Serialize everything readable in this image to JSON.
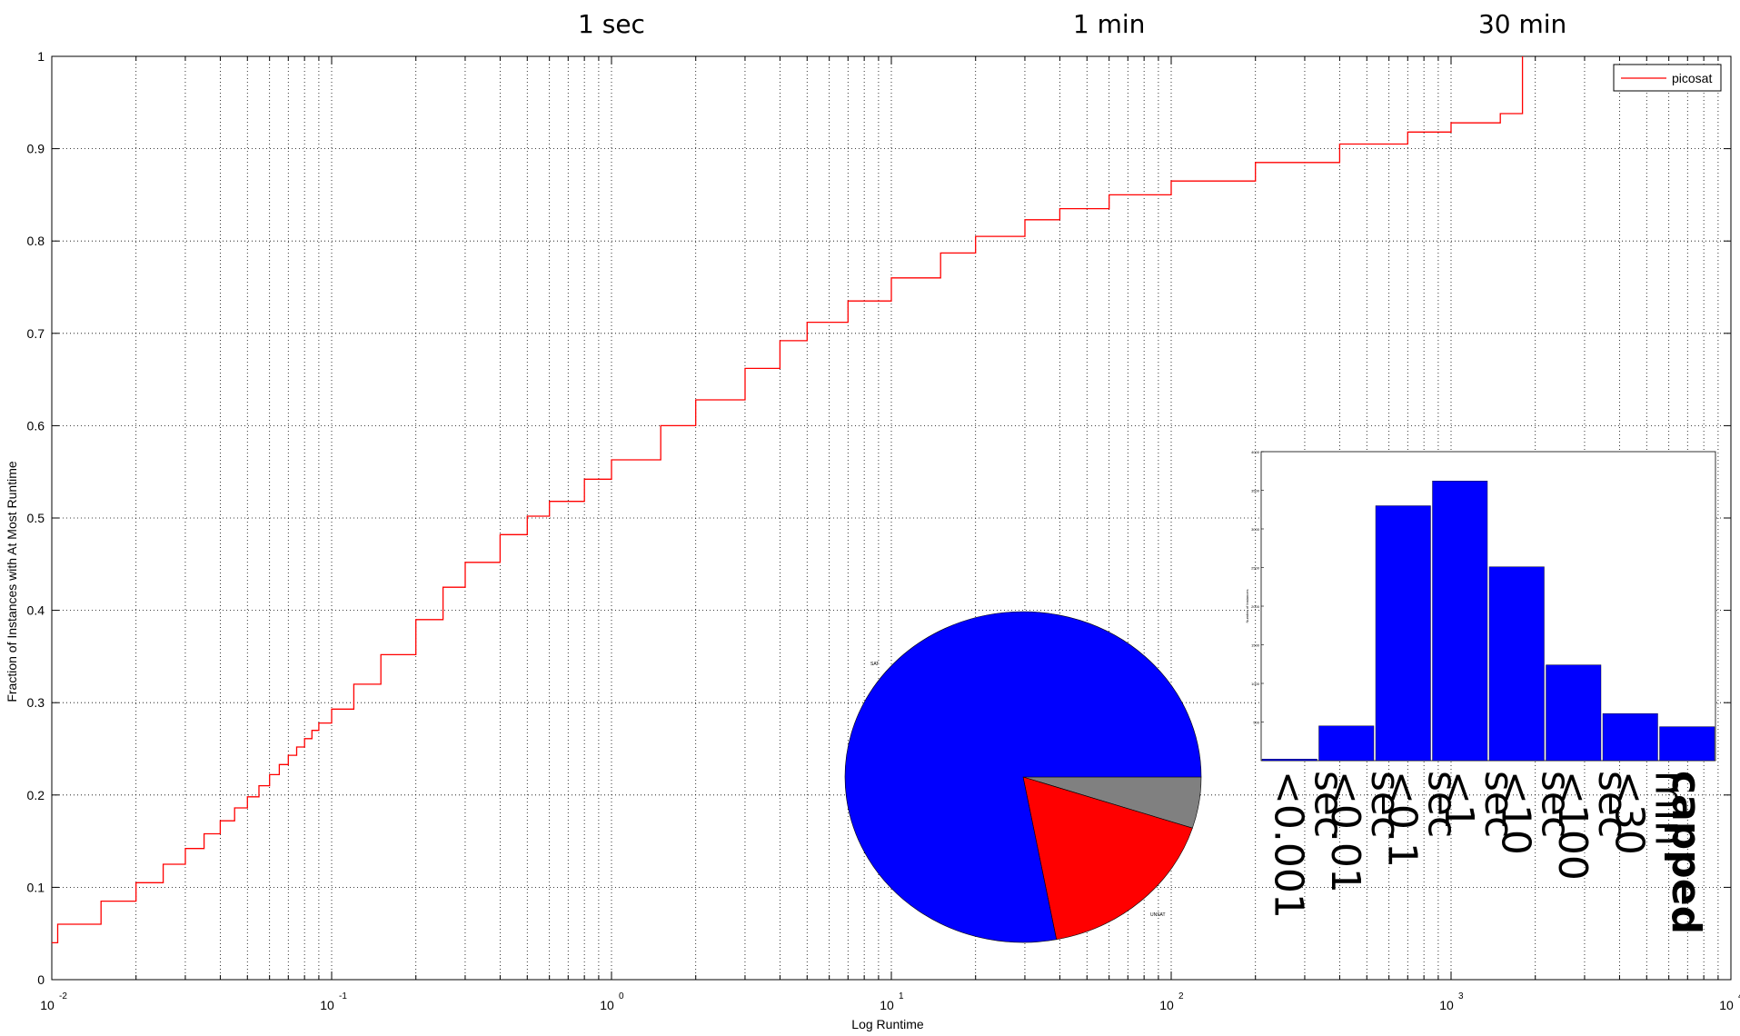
{
  "chart_data": [
    {
      "type": "line",
      "xlabel": "Log Runtime",
      "ylabel": "Fraction of Instances with At Most Runtime",
      "xscale": "log",
      "xlim": [
        0.01,
        10000
      ],
      "ylim": [
        0,
        1
      ],
      "grid": true,
      "legend_position": "top-right",
      "x_tick_labels": [
        {
          "base": "10",
          "exp": "-2",
          "value": 0.01
        },
        {
          "base": "10",
          "exp": "-1",
          "value": 0.1
        },
        {
          "base": "10",
          "exp": "0",
          "value": 1
        },
        {
          "base": "10",
          "exp": "1",
          "value": 10
        },
        {
          "base": "10",
          "exp": "2",
          "value": 100
        },
        {
          "base": "10",
          "exp": "3",
          "value": 1000
        },
        {
          "base": "10",
          "exp": "4",
          "value": 10000
        }
      ],
      "y_tick_labels": [
        "0",
        "0.1",
        "0.2",
        "0.3",
        "0.4",
        "0.5",
        "0.6",
        "0.7",
        "0.8",
        "0.9",
        "1"
      ],
      "time_annotations": [
        {
          "label": "1 sec",
          "x": 1
        },
        {
          "label": "1 min",
          "x": 60
        },
        {
          "label": "30 min",
          "x": 1800
        }
      ],
      "series": [
        {
          "name": "picosat",
          "color": "#ff0000",
          "step": true,
          "x": [
            0.01,
            0.0105,
            0.015,
            0.02,
            0.025,
            0.03,
            0.035,
            0.04,
            0.045,
            0.05,
            0.055,
            0.06,
            0.065,
            0.07,
            0.075,
            0.08,
            0.085,
            0.09,
            0.1,
            0.12,
            0.15,
            0.2,
            0.25,
            0.3,
            0.4,
            0.5,
            0.6,
            0.8,
            1,
            1.5,
            2,
            3,
            4,
            5,
            7,
            10,
            15,
            20,
            30,
            40,
            60,
            100,
            200,
            400,
            700,
            1000,
            1500,
            1800,
            1800
          ],
          "y": [
            0.04,
            0.06,
            0.085,
            0.105,
            0.125,
            0.142,
            0.158,
            0.172,
            0.186,
            0.198,
            0.21,
            0.222,
            0.233,
            0.243,
            0.252,
            0.261,
            0.27,
            0.278,
            0.293,
            0.32,
            0.352,
            0.39,
            0.425,
            0.452,
            0.482,
            0.502,
            0.518,
            0.542,
            0.563,
            0.6,
            0.628,
            0.662,
            0.692,
            0.712,
            0.735,
            0.76,
            0.787,
            0.805,
            0.823,
            0.835,
            0.85,
            0.865,
            0.885,
            0.905,
            0.918,
            0.928,
            0.938,
            0.945,
            1.0
          ]
        }
      ]
    },
    {
      "type": "pie",
      "labels": [
        "SAT",
        "UNSAT",
        ""
      ],
      "values": [
        0.78,
        0.17,
        0.05
      ],
      "colors": [
        "#0000ff",
        "#ff0000",
        "#808080"
      ]
    },
    {
      "type": "bar",
      "ylabel": "Number of Instances",
      "ylim": [
        0,
        4000
      ],
      "y_tick_labels": [
        "500",
        "1000",
        "1500",
        "2000",
        "2500",
        "3000",
        "3500",
        "4000"
      ],
      "categories": [
        "<0.001 sec",
        "<0.01 sec",
        "<0.1 sec",
        "<1 sec",
        "<10 sec",
        "<100 sec",
        "<30 min",
        "capped"
      ],
      "values": [
        20,
        450,
        3300,
        3620,
        2510,
        1240,
        610,
        440
      ],
      "color": "#0000ff"
    }
  ]
}
